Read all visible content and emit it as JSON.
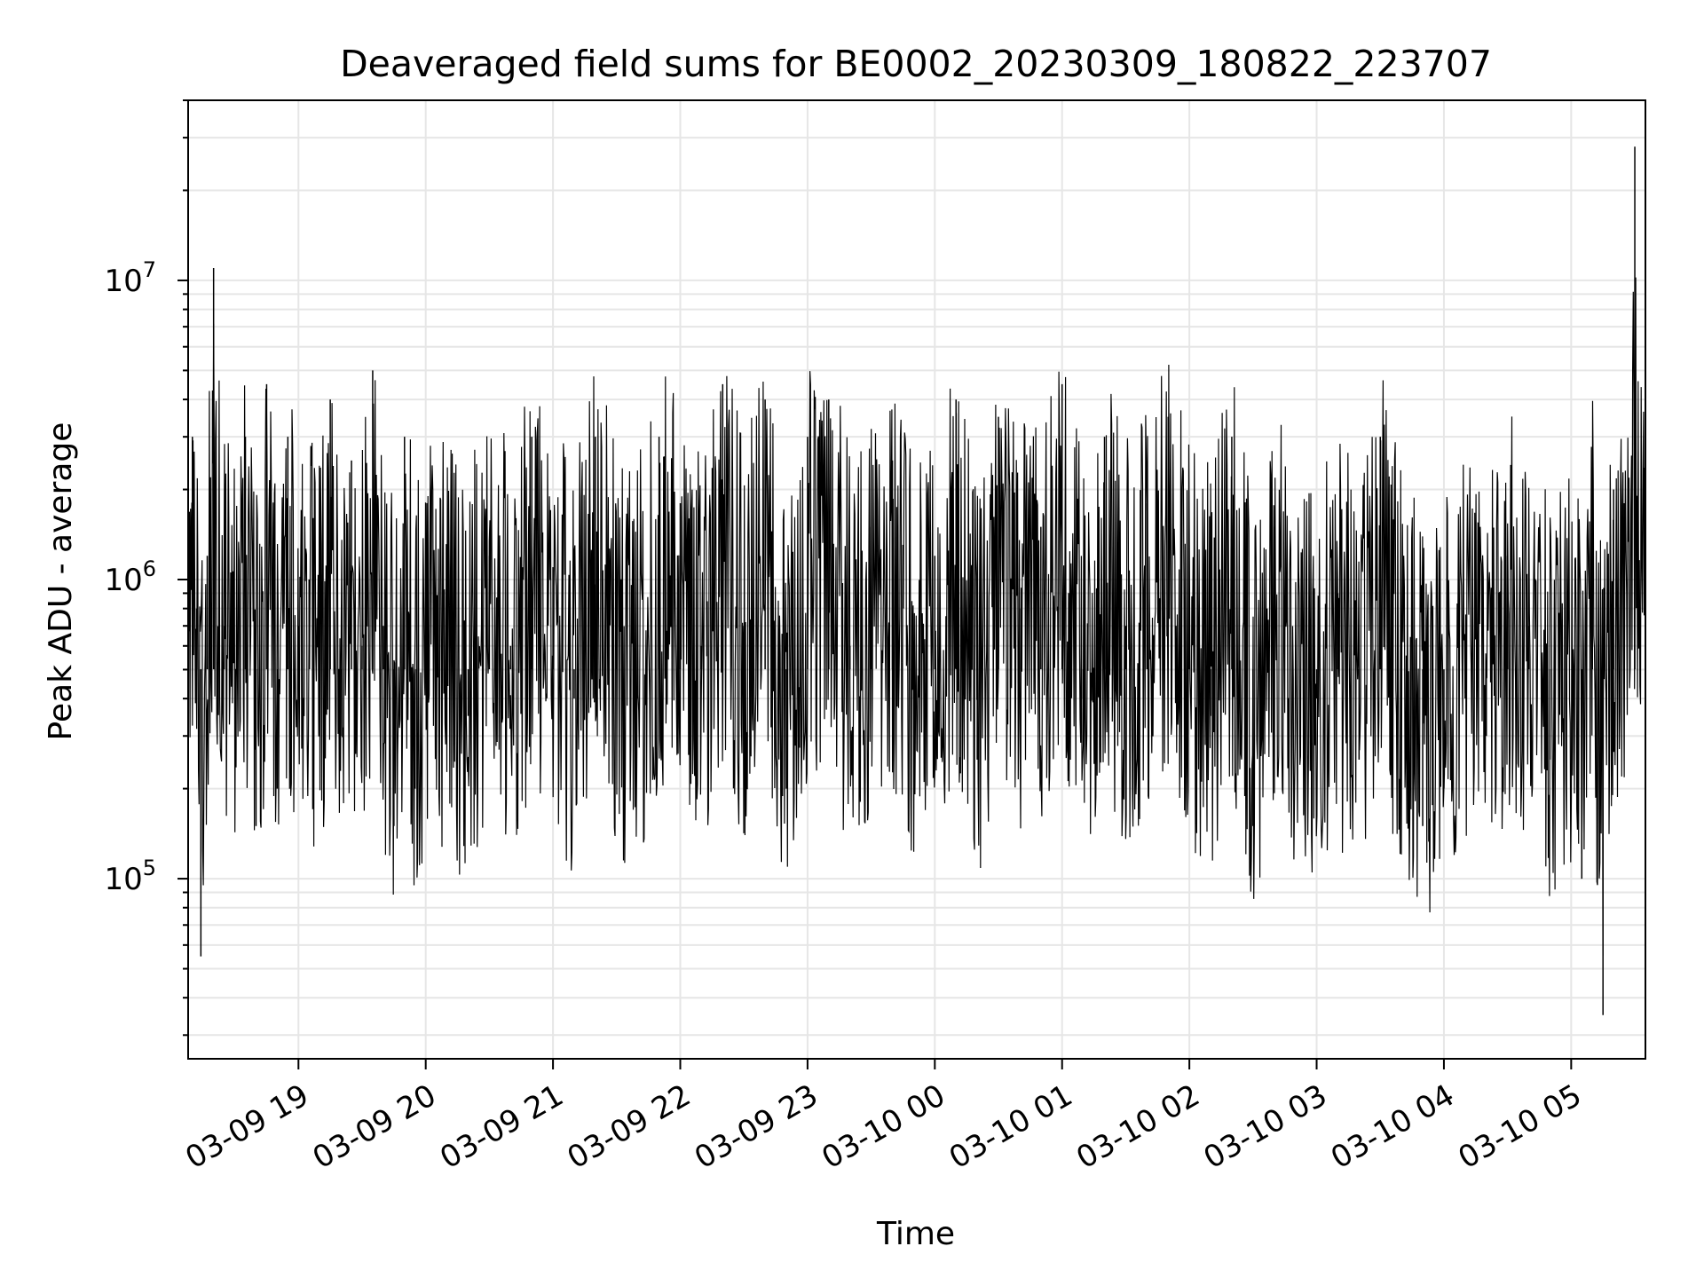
{
  "chart_data": {
    "type": "line",
    "title": "Deaveraged field sums for BE0002_20230309_180822_223707",
    "xlabel": "Time",
    "ylabel": "Peak ADU - average",
    "y_scale": "log",
    "ylim": [
      25000,
      40000000
    ],
    "xlim": [
      "03-09 18:08",
      "03-10 05:35"
    ],
    "grid": true,
    "line_color": "#000000",
    "x_ticks": [
      "03-09 19",
      "03-09 20",
      "03-09 21",
      "03-09 22",
      "03-09 23",
      "03-10 00",
      "03-10 01",
      "03-10 02",
      "03-10 03",
      "03-10 04",
      "03-10 05"
    ],
    "y_ticks": [
      {
        "base": "10",
        "exp": "5",
        "value": 100000
      },
      {
        "base": "10",
        "exp": "6",
        "value": 1000000
      },
      {
        "base": "10",
        "exp": "7",
        "value": 10000000
      }
    ],
    "series": [
      {
        "x": [
          "03-09 18:08",
          "03-09 18:10",
          "03-09 18:12",
          "03-09 18:14",
          "03-09 18:17",
          "03-09 18:20",
          "03-09 18:25",
          "03-09 18:30",
          "03-09 18:35",
          "03-09 18:40",
          "03-09 18:45",
          "03-09 18:50",
          "03-09 18:55",
          "03-09 19:00",
          "03-09 19:05",
          "03-09 19:10",
          "03-09 19:15",
          "03-09 19:20",
          "03-09 19:25",
          "03-09 19:30",
          "03-09 19:35",
          "03-09 19:40",
          "03-09 19:45",
          "03-09 19:50",
          "03-09 19:55",
          "03-09 20:00",
          "03-09 20:10",
          "03-09 20:20",
          "03-09 20:30",
          "03-09 20:40",
          "03-09 20:50",
          "03-09 21:00",
          "03-09 21:10",
          "03-09 21:20",
          "03-09 21:30",
          "03-09 21:40",
          "03-09 21:50",
          "03-09 22:00",
          "03-09 22:10",
          "03-09 22:20",
          "03-09 22:30",
          "03-09 22:40",
          "03-09 22:50",
          "03-09 23:00",
          "03-09 23:10",
          "03-09 23:20",
          "03-09 23:30",
          "03-09 23:40",
          "03-09 23:50",
          "03-10 00:00",
          "03-10 00:10",
          "03-10 00:20",
          "03-10 00:30",
          "03-10 00:40",
          "03-10 00:50",
          "03-10 01:00",
          "03-10 01:10",
          "03-10 01:20",
          "03-10 01:30",
          "03-10 01:40",
          "03-10 01:50",
          "03-10 02:00",
          "03-10 02:10",
          "03-10 02:20",
          "03-10 02:30",
          "03-10 02:40",
          "03-10 02:50",
          "03-10 03:00",
          "03-10 03:10",
          "03-10 03:20",
          "03-10 03:30",
          "03-10 03:40",
          "03-10 03:50",
          "03-10 04:00",
          "03-10 04:10",
          "03-10 04:20",
          "03-10 04:30",
          "03-10 04:40",
          "03-10 04:50",
          "03-10 05:00",
          "03-10 05:05",
          "03-10 05:10",
          "03-10 05:15",
          "03-10 05:20",
          "03-10 05:25",
          "03-10 05:30",
          "03-10 05:35"
        ],
        "y": [
          1000000,
          3000000,
          800000,
          55000,
          1200000,
          11000000,
          700000,
          500000,
          3000000,
          150000,
          4500000,
          200000,
          3000000,
          700000,
          1000000,
          500000,
          4000000,
          300000,
          2500000,
          600000,
          5000000,
          700000,
          150000,
          3000000,
          200000,
          900000,
          600000,
          350000,
          1200000,
          600000,
          3000000,
          1100000,
          400000,
          3000000,
          700000,
          400000,
          3000000,
          1800000,
          600000,
          4500000,
          700000,
          4000000,
          200000,
          3000000,
          4000000,
          600000,
          1500000,
          2500000,
          400000,
          1200000,
          4000000,
          250000,
          3500000,
          800000,
          1500000,
          4500000,
          400000,
          3000000,
          700000,
          1800000,
          3500000,
          900000,
          350000,
          3000000,
          150000,
          1500000,
          500000,
          400000,
          900000,
          250000,
          3000000,
          500000,
          150000,
          200000,
          400000,
          300000,
          1200000,
          700000,
          250000,
          500000,
          100000,
          2000000,
          35000,
          2000000,
          1800000,
          28000000,
          3500000
        ]
      }
    ]
  }
}
